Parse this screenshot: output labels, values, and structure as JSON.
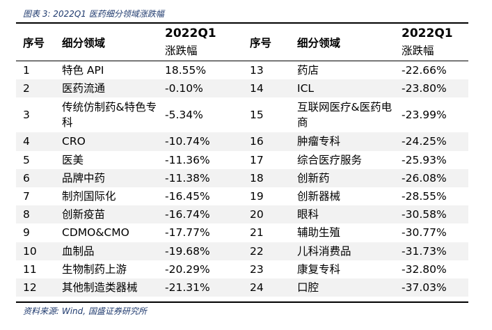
{
  "caption": "图表 3:  2022Q1 医药细分领域涨跌幅",
  "headers": {
    "seq": "序号",
    "field": "细分领域",
    "chg_line1": "2022Q1",
    "chg_line2": "涨跌幅"
  },
  "rows": [
    {
      "left": {
        "seq": "1",
        "name": "特色 API",
        "chg": "18.55%"
      },
      "right": {
        "seq": "13",
        "name": "药店",
        "chg": "-22.66%"
      }
    },
    {
      "left": {
        "seq": "2",
        "name": "医药流通",
        "chg": "-0.10%"
      },
      "right": {
        "seq": "14",
        "name": "ICL",
        "chg": "-23.80%"
      }
    },
    {
      "left": {
        "seq": "3",
        "name": "传统仿制药&特色专科",
        "chg": "-5.34%"
      },
      "right": {
        "seq": "15",
        "name": "互联网医疗&医药电商",
        "chg": "-23.99%"
      }
    },
    {
      "left": {
        "seq": "4",
        "name": "CRO",
        "chg": "-10.74%"
      },
      "right": {
        "seq": "16",
        "name": "肿瘤专科",
        "chg": "-24.25%"
      }
    },
    {
      "left": {
        "seq": "5",
        "name": "医美",
        "chg": "-11.36%"
      },
      "right": {
        "seq": "17",
        "name": "综合医疗服务",
        "chg": "-25.93%"
      }
    },
    {
      "left": {
        "seq": "6",
        "name": "品牌中药",
        "chg": "-11.38%"
      },
      "right": {
        "seq": "18",
        "name": "创新药",
        "chg": "-26.08%"
      }
    },
    {
      "left": {
        "seq": "7",
        "name": "制剂国际化",
        "chg": "-16.45%"
      },
      "right": {
        "seq": "19",
        "name": "创新器械",
        "chg": "-28.55%"
      }
    },
    {
      "left": {
        "seq": "8",
        "name": "创新疫苗",
        "chg": "-16.74%"
      },
      "right": {
        "seq": "20",
        "name": "眼科",
        "chg": "-30.58%"
      }
    },
    {
      "left": {
        "seq": "9",
        "name": "CDMO&CMO",
        "chg": "-17.77%"
      },
      "right": {
        "seq": "21",
        "name": "辅助生殖",
        "chg": "-30.77%"
      }
    },
    {
      "left": {
        "seq": "10",
        "name": "血制品",
        "chg": "-19.68%"
      },
      "right": {
        "seq": "22",
        "name": "儿科消费品",
        "chg": "-31.73%"
      }
    },
    {
      "left": {
        "seq": "11",
        "name": "生物制药上游",
        "chg": "-20.29%"
      },
      "right": {
        "seq": "23",
        "name": "康复专科",
        "chg": "-32.80%"
      }
    },
    {
      "left": {
        "seq": "12",
        "name": "其他制造类器械",
        "chg": "-21.31%"
      },
      "right": {
        "seq": "24",
        "name": "口腔",
        "chg": "-37.03%"
      }
    }
  ],
  "source": "资料来源:  Wind,  国盛证券研究所"
}
